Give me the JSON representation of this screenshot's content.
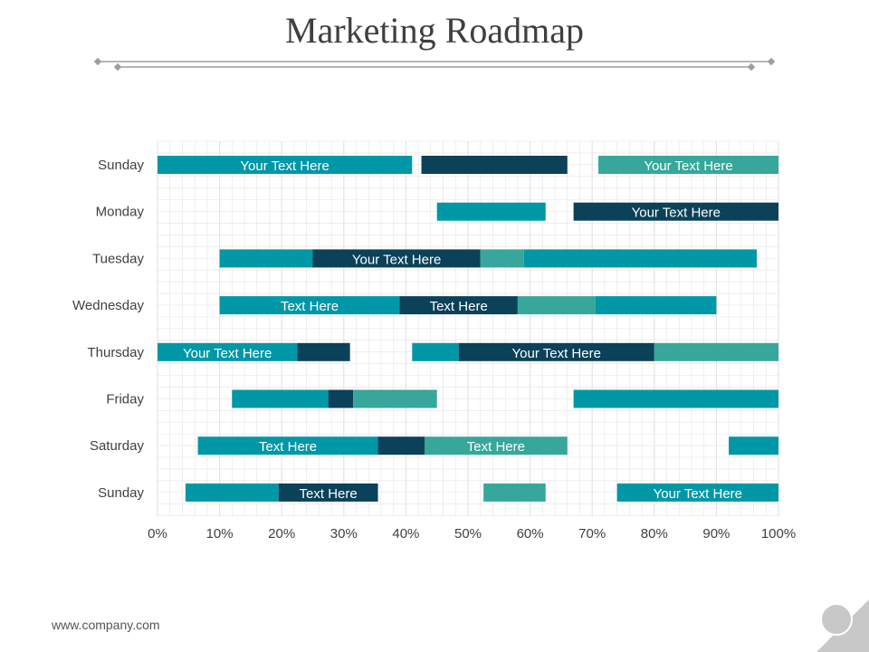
{
  "page": {
    "title": "Marketing Roadmap",
    "footer": "www.company.com"
  },
  "colors": {
    "teal": "#0097a7",
    "navy": "#0b4159",
    "green": "#36a79a",
    "grid": "#e4e4e4",
    "ornament": "#9e9e9e",
    "corner": "#c8c8c8"
  },
  "chart_data": {
    "type": "bar",
    "subtype": "floating-horizontal",
    "title": "Marketing Roadmap",
    "xlabel": "",
    "ylabel": "",
    "xlim": [
      0,
      100
    ],
    "x_ticks": [
      "0%",
      "10%",
      "20%",
      "30%",
      "40%",
      "50%",
      "60%",
      "70%",
      "80%",
      "90%",
      "100%"
    ],
    "grid": true,
    "categories": [
      "Sunday",
      "Monday",
      "Tuesday",
      "Wednesday",
      "Thursday",
      "Friday",
      "Saturday",
      "Sunday"
    ],
    "rows": [
      {
        "day": "Sunday",
        "segments": [
          {
            "start": 0,
            "end": 41,
            "color": "teal",
            "label": "Your Text Here"
          },
          {
            "start": 42.5,
            "end": 66,
            "color": "navy",
            "label": ""
          },
          {
            "start": 71,
            "end": 100,
            "color": "green",
            "label": "Your Text Here"
          }
        ]
      },
      {
        "day": "Monday",
        "segments": [
          {
            "start": 45,
            "end": 62.5,
            "color": "teal",
            "label": ""
          },
          {
            "start": 67,
            "end": 100,
            "color": "navy",
            "label": "Your Text Here"
          }
        ]
      },
      {
        "day": "Tuesday",
        "segments": [
          {
            "start": 10,
            "end": 25,
            "color": "teal",
            "label": ""
          },
          {
            "start": 25,
            "end": 52,
            "color": "navy",
            "label": "Your Text Here"
          },
          {
            "start": 52,
            "end": 59,
            "color": "green",
            "label": ""
          },
          {
            "start": 59,
            "end": 96.5,
            "color": "teal",
            "label": ""
          }
        ]
      },
      {
        "day": "Wednesday",
        "segments": [
          {
            "start": 10,
            "end": 39,
            "color": "teal",
            "label": "Text Here"
          },
          {
            "start": 39,
            "end": 58,
            "color": "navy",
            "label": "Text Here"
          },
          {
            "start": 58,
            "end": 70.5,
            "color": "green",
            "label": ""
          },
          {
            "start": 70.5,
            "end": 90,
            "color": "teal",
            "label": ""
          }
        ]
      },
      {
        "day": "Thursday",
        "segments": [
          {
            "start": 0,
            "end": 22.5,
            "color": "teal",
            "label": "Your Text Here"
          },
          {
            "start": 22.5,
            "end": 31,
            "color": "navy",
            "label": ""
          },
          {
            "start": 41,
            "end": 48.5,
            "color": "teal",
            "label": ""
          },
          {
            "start": 48.5,
            "end": 80,
            "color": "navy",
            "label": "Your Text Here"
          },
          {
            "start": 80,
            "end": 100,
            "color": "green",
            "label": ""
          }
        ]
      },
      {
        "day": "Friday",
        "segments": [
          {
            "start": 12,
            "end": 27.5,
            "color": "teal",
            "label": ""
          },
          {
            "start": 27.5,
            "end": 31.5,
            "color": "navy",
            "label": ""
          },
          {
            "start": 31.5,
            "end": 45,
            "color": "green",
            "label": ""
          },
          {
            "start": 67,
            "end": 100,
            "color": "teal",
            "label": ""
          }
        ]
      },
      {
        "day": "Saturday",
        "segments": [
          {
            "start": 6.5,
            "end": 35.5,
            "color": "teal",
            "label": "Text Here"
          },
          {
            "start": 35.5,
            "end": 43,
            "color": "navy",
            "label": ""
          },
          {
            "start": 43,
            "end": 66,
            "color": "green",
            "label": "Text Here"
          },
          {
            "start": 92,
            "end": 100,
            "color": "teal",
            "label": ""
          }
        ]
      },
      {
        "day": "Sunday",
        "segments": [
          {
            "start": 4.5,
            "end": 19.5,
            "color": "teal",
            "label": ""
          },
          {
            "start": 19.5,
            "end": 35.5,
            "color": "navy",
            "label": "Text Here"
          },
          {
            "start": 52.5,
            "end": 62.5,
            "color": "green",
            "label": ""
          },
          {
            "start": 74,
            "end": 100,
            "color": "teal",
            "label": "Your Text Here"
          }
        ]
      }
    ]
  }
}
